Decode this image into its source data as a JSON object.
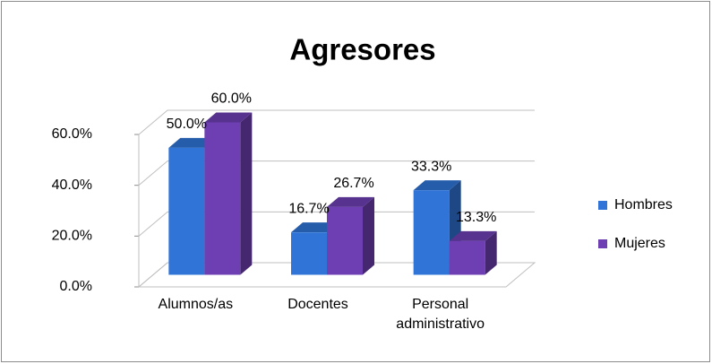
{
  "chart_data": {
    "type": "bar3d",
    "title": "Agresores",
    "categories": [
      "Alumnos/as",
      "Docentes",
      "Personal administrativo"
    ],
    "series": [
      {
        "name": "Hombres",
        "color": "#2f74d6",
        "values": [
          50.0,
          16.7,
          33.3
        ],
        "value_labels": [
          "50.0%",
          "16.7%",
          "33.3%"
        ]
      },
      {
        "name": "Mujeres",
        "color": "#6d3fb2",
        "values": [
          60.0,
          26.7,
          13.3
        ],
        "value_labels": [
          "60.0%",
          "26.7%",
          "13.3%"
        ]
      }
    ],
    "ylim": [
      0,
      60
    ],
    "yticks": [
      {
        "value": 0,
        "label": "0.0%"
      },
      {
        "value": 20,
        "label": "20.0%"
      },
      {
        "value": 40,
        "label": "40.0%"
      },
      {
        "value": 60,
        "label": "60.0%"
      }
    ],
    "grid": true,
    "legend": "right"
  }
}
